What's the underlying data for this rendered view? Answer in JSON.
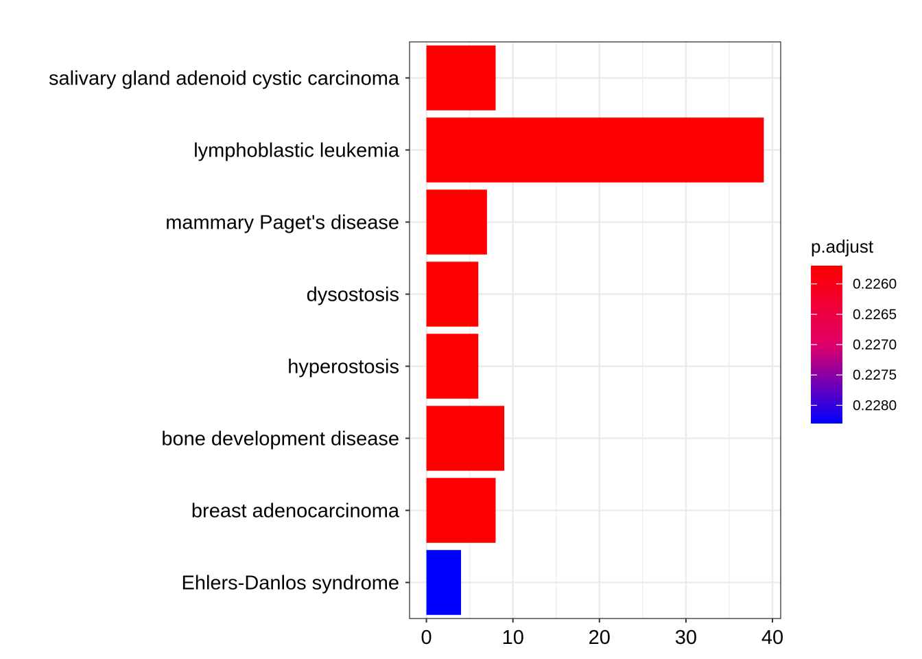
{
  "chart_data": {
    "type": "bar",
    "orientation": "horizontal",
    "categories": [
      "salivary gland adenoid cystic carcinoma",
      "lymphoblastic leukemia",
      "mammary Paget's disease",
      "dysostosis",
      "hyperostosis",
      "bone development disease",
      "breast adenocarcinoma",
      "Ehlers-Danlos syndrome"
    ],
    "values": [
      8,
      39,
      7,
      6,
      6,
      9,
      8,
      4
    ],
    "p_adjust": [
      0.2257,
      0.2257,
      0.2257,
      0.2257,
      0.2257,
      0.2257,
      0.2257,
      0.2283
    ],
    "bar_colors": [
      "#FF0000",
      "#FF0000",
      "#FF0000",
      "#FF0000",
      "#FF0000",
      "#FF0000",
      "#FF0000",
      "#0000FF"
    ],
    "xlim": [
      -1.95,
      40.95
    ],
    "xticks": [
      "0",
      "10",
      "20",
      "30",
      "40"
    ],
    "grid": true,
    "legend": {
      "title": "p.adjust",
      "position": "right",
      "low_color": "#FF0000",
      "high_color": "#0000FF",
      "range": [
        0.2257,
        0.2283
      ],
      "ticks": [
        "0.2260",
        "0.2265",
        "0.2270",
        "0.2275",
        "0.2280"
      ]
    }
  }
}
